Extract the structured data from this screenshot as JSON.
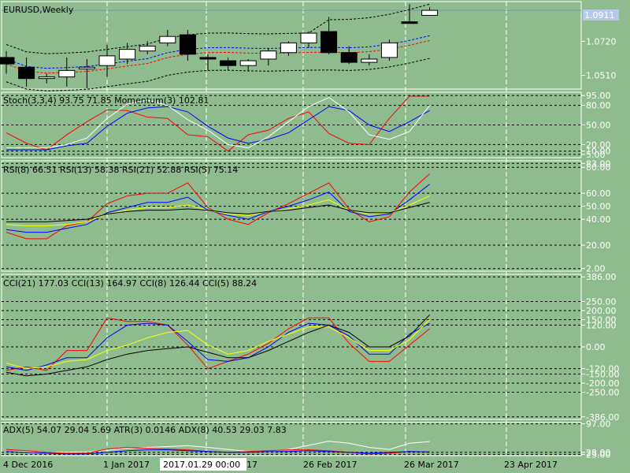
{
  "chart_data": [
    {
      "type": "candlestick",
      "title": "EURUSD,Weekly",
      "current_price": "1.0911",
      "y_ticks": [
        "1.0720",
        "1.0510"
      ],
      "ylim": [
        1.0425,
        1.0965
      ],
      "x_ticks": [
        "4 Dec 2016",
        "1 Jan 2017",
        "29 Jan 2017",
        "26 Feb 2017",
        "26 Mar 2017",
        "23 Apr 2017"
      ],
      "cursor_label": "2017.01.29 00:00",
      "candles": [
        {
          "o": 1.062,
          "h": 1.066,
          "l": 1.052,
          "c": 1.058
        },
        {
          "o": 1.056,
          "h": 1.062,
          "l": 1.044,
          "c": 1.049
        },
        {
          "o": 1.049,
          "h": 1.052,
          "l": 1.046,
          "c": 1.05
        },
        {
          "o": 1.05,
          "h": 1.062,
          "l": 1.044,
          "c": 1.054
        },
        {
          "o": 1.055,
          "h": 1.061,
          "l": 1.043,
          "c": 1.056
        },
        {
          "o": 1.057,
          "h": 1.07,
          "l": 1.05,
          "c": 1.063
        },
        {
          "o": 1.061,
          "h": 1.071,
          "l": 1.058,
          "c": 1.067
        },
        {
          "o": 1.066,
          "h": 1.072,
          "l": 1.064,
          "c": 1.069
        },
        {
          "o": 1.071,
          "h": 1.079,
          "l": 1.069,
          "c": 1.075
        },
        {
          "o": 1.076,
          "h": 1.079,
          "l": 1.06,
          "c": 1.064
        },
        {
          "o": 1.062,
          "h": 1.064,
          "l": 1.054,
          "c": 1.061
        },
        {
          "o": 1.06,
          "h": 1.062,
          "l": 1.054,
          "c": 1.057
        },
        {
          "o": 1.057,
          "h": 1.061,
          "l": 1.054,
          "c": 1.06
        },
        {
          "o": 1.061,
          "h": 1.068,
          "l": 1.057,
          "c": 1.066
        },
        {
          "o": 1.065,
          "h": 1.072,
          "l": 1.063,
          "c": 1.071
        },
        {
          "o": 1.071,
          "h": 1.078,
          "l": 1.068,
          "c": 1.077
        },
        {
          "o": 1.078,
          "h": 1.087,
          "l": 1.064,
          "c": 1.065
        },
        {
          "o": 1.065,
          "h": 1.069,
          "l": 1.058,
          "c": 1.059
        },
        {
          "o": 1.059,
          "h": 1.064,
          "l": 1.057,
          "c": 1.061
        },
        {
          "o": 1.062,
          "h": 1.073,
          "l": 1.06,
          "c": 1.071
        },
        {
          "o": 1.084,
          "h": 1.095,
          "l": 1.083,
          "c": 1.083
        },
        {
          "o": 1.088,
          "h": 1.093,
          "l": 1.088,
          "c": 1.0911
        }
      ]
    },
    {
      "type": "line",
      "label": "Stoch(3,3,4) 93.75 71.85 Momentum(3) 102.81",
      "ylim": [
        0,
        100
      ],
      "y_ticks": [
        "95.00",
        "80.00",
        "50.00",
        "20.00",
        "10.00",
        "5.00"
      ],
      "y_values": [
        95,
        80,
        50,
        20,
        10,
        5
      ],
      "series": [
        {
          "color": "#ff0000",
          "values": [
            38,
            22,
            12,
            35,
            55,
            73,
            72,
            62,
            60,
            35,
            32,
            10,
            35,
            42,
            60,
            70,
            37,
            22,
            20,
            60,
            94,
            94
          ]
        },
        {
          "color": "#0000ff",
          "values": [
            12,
            12,
            12,
            18,
            22,
            48,
            68,
            76,
            78,
            70,
            48,
            30,
            22,
            28,
            38,
            58,
            78,
            72,
            50,
            40,
            55,
            72
          ]
        },
        {
          "color": "#ffffff",
          "values": [
            15,
            15,
            15,
            20,
            30,
            60,
            82,
            88,
            80,
            58,
            42,
            20,
            15,
            32,
            55,
            78,
            92,
            70,
            35,
            28,
            40,
            80
          ]
        }
      ]
    },
    {
      "type": "line",
      "label": "RSI(8) 66.51 RSI(13) 58.38 RSI(21) 52.88 RSI(5) 75.14",
      "ylim": [
        0,
        85
      ],
      "y_ticks": [
        "83.00",
        "80.00",
        "60.00",
        "50.00",
        "40.00",
        "20.00",
        "2.00"
      ],
      "y_values": [
        83,
        80,
        60,
        50,
        40,
        20,
        2
      ],
      "series": [
        {
          "color": "#ff0000",
          "values": [
            30,
            25,
            25,
            35,
            38,
            52,
            58,
            60,
            60,
            68,
            49,
            40,
            36,
            45,
            52,
            60,
            68,
            48,
            38,
            42,
            61,
            75
          ]
        },
        {
          "color": "#0000ff",
          "values": [
            32,
            30,
            30,
            33,
            36,
            45,
            49,
            53,
            53,
            57,
            47,
            43,
            40,
            46,
            50,
            55,
            61,
            46,
            42,
            44,
            55,
            67
          ]
        },
        {
          "color": "#ffff00",
          "values": [
            36,
            35,
            35,
            36,
            38,
            44,
            47,
            49,
            49,
            51,
            47,
            44,
            43,
            46,
            48,
            51,
            55,
            47,
            44,
            45,
            51,
            58
          ]
        },
        {
          "color": "#000000",
          "values": [
            38,
            38,
            38,
            39,
            40,
            44,
            46,
            47,
            47,
            48,
            47,
            45,
            44,
            46,
            47,
            49,
            51,
            47,
            45,
            45,
            49,
            53
          ]
        }
      ]
    },
    {
      "type": "line",
      "label": "CCI(21) 177.03 CCI(13) 164.97 CCI(8) 126.44 CCI(5) 88.24",
      "ylim": [
        -400,
        400
      ],
      "y_ticks": [
        "386.00",
        "250.00",
        "200.00",
        "150.00",
        "120.00",
        "0.00",
        "-120.00",
        "-150.00",
        "-200.00",
        "-250.00",
        "-386.00"
      ],
      "y_values": [
        386,
        250,
        200,
        150,
        120,
        0,
        -120,
        -150,
        -200,
        -250,
        -386
      ],
      "series": [
        {
          "color": "#ff0000",
          "values": [
            -130,
            -110,
            -130,
            -20,
            -20,
            160,
            140,
            140,
            120,
            10,
            -120,
            -80,
            -40,
            20,
            100,
            160,
            160,
            20,
            -80,
            -80,
            10,
            100
          ]
        },
        {
          "color": "#0000ff",
          "values": [
            -110,
            -130,
            -100,
            -60,
            -60,
            50,
            120,
            130,
            120,
            30,
            -70,
            -80,
            -60,
            0,
            80,
            130,
            120,
            60,
            -40,
            -40,
            70,
            130
          ]
        },
        {
          "color": "#ffff00",
          "values": [
            -90,
            -120,
            -110,
            -80,
            -70,
            -20,
            10,
            50,
            80,
            90,
            10,
            -40,
            -20,
            30,
            70,
            110,
            110,
            50,
            -20,
            -20,
            40,
            150
          ]
        },
        {
          "color": "#000000",
          "values": [
            -140,
            -160,
            -150,
            -130,
            -110,
            -70,
            -40,
            -20,
            -10,
            0,
            -30,
            -60,
            -60,
            -20,
            30,
            80,
            120,
            80,
            0,
            0,
            60,
            177
          ]
        }
      ]
    },
    {
      "type": "line",
      "label": "ADX(5) 54.07 29.04 5.69 ATR(3) 0.0146 ADX(8) 40.53 29.03 7.83",
      "ylim": [
        20,
        100
      ],
      "y_ticks": [
        "97.00",
        "28.00",
        "23.00"
      ],
      "y_values": [
        97,
        28,
        23
      ],
      "series": [
        {
          "color": "#ffffff",
          "values": [
            30,
            30,
            28,
            28,
            29,
            33,
            38,
            40,
            42,
            44,
            40,
            35,
            30,
            30,
            35,
            45,
            55,
            50,
            40,
            35,
            50,
            54
          ]
        },
        {
          "color": "#ff0000",
          "values": [
            35,
            32,
            28,
            26,
            26,
            36,
            40,
            38,
            36,
            34,
            30,
            28,
            30,
            32,
            34,
            34,
            32,
            28,
            24,
            26,
            30,
            29
          ]
        },
        {
          "color": "#0000ff",
          "values": [
            30,
            28,
            26,
            24,
            24,
            28,
            32,
            34,
            34,
            32,
            30,
            28,
            28,
            30,
            30,
            32,
            30,
            28,
            26,
            28,
            30,
            29
          ]
        }
      ]
    }
  ]
}
